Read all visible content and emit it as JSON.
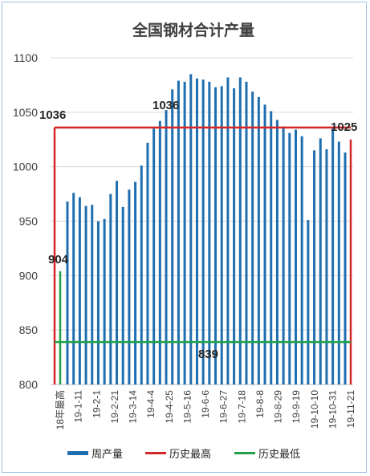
{
  "chart_data": {
    "type": "bar",
    "title": "全国钢材合计产量",
    "ylim": [
      800,
      1100
    ],
    "yticks": [
      800,
      850,
      900,
      950,
      1000,
      1050,
      1100
    ],
    "grid": true,
    "legend_position": "bottom",
    "x_labels": [
      "18年最高",
      "19-1-11",
      "19-2-1",
      "19-2-21",
      "19-3-14",
      "19-4-4",
      "19-4-25",
      "19-5-16",
      "19-6-6",
      "19-6-27",
      "19-7-18",
      "19-8-8",
      "19-8-29",
      "19-9-19",
      "19-10-10",
      "19-10-31",
      "19-11-21"
    ],
    "series": [
      {
        "name": "周产量",
        "color": "#1f6fb0",
        "values": [
          968,
          976,
          972,
          964,
          965,
          950,
          952,
          975,
          987,
          963,
          979,
          986,
          1001,
          1022,
          1035,
          1042,
          1052,
          1071,
          1079,
          1078,
          1085,
          1081,
          1080,
          1078,
          1073,
          1074,
          1082,
          1072,
          1082,
          1078,
          1069,
          1064,
          1057,
          1051,
          1043,
          1037,
          1031,
          1034,
          1028,
          951,
          1015,
          1026,
          1016,
          1035,
          1023,
          1013
        ]
      },
      {
        "name": "历史最高",
        "color": "#d62728",
        "value": 1036
      },
      {
        "name": "历史最低",
        "color": "#1fa14a",
        "value": 839
      }
    ],
    "highest_18_bar": 904,
    "last_bar": 1025,
    "annotations": [
      "1036",
      "1036",
      "1025",
      "904",
      "839"
    ]
  }
}
